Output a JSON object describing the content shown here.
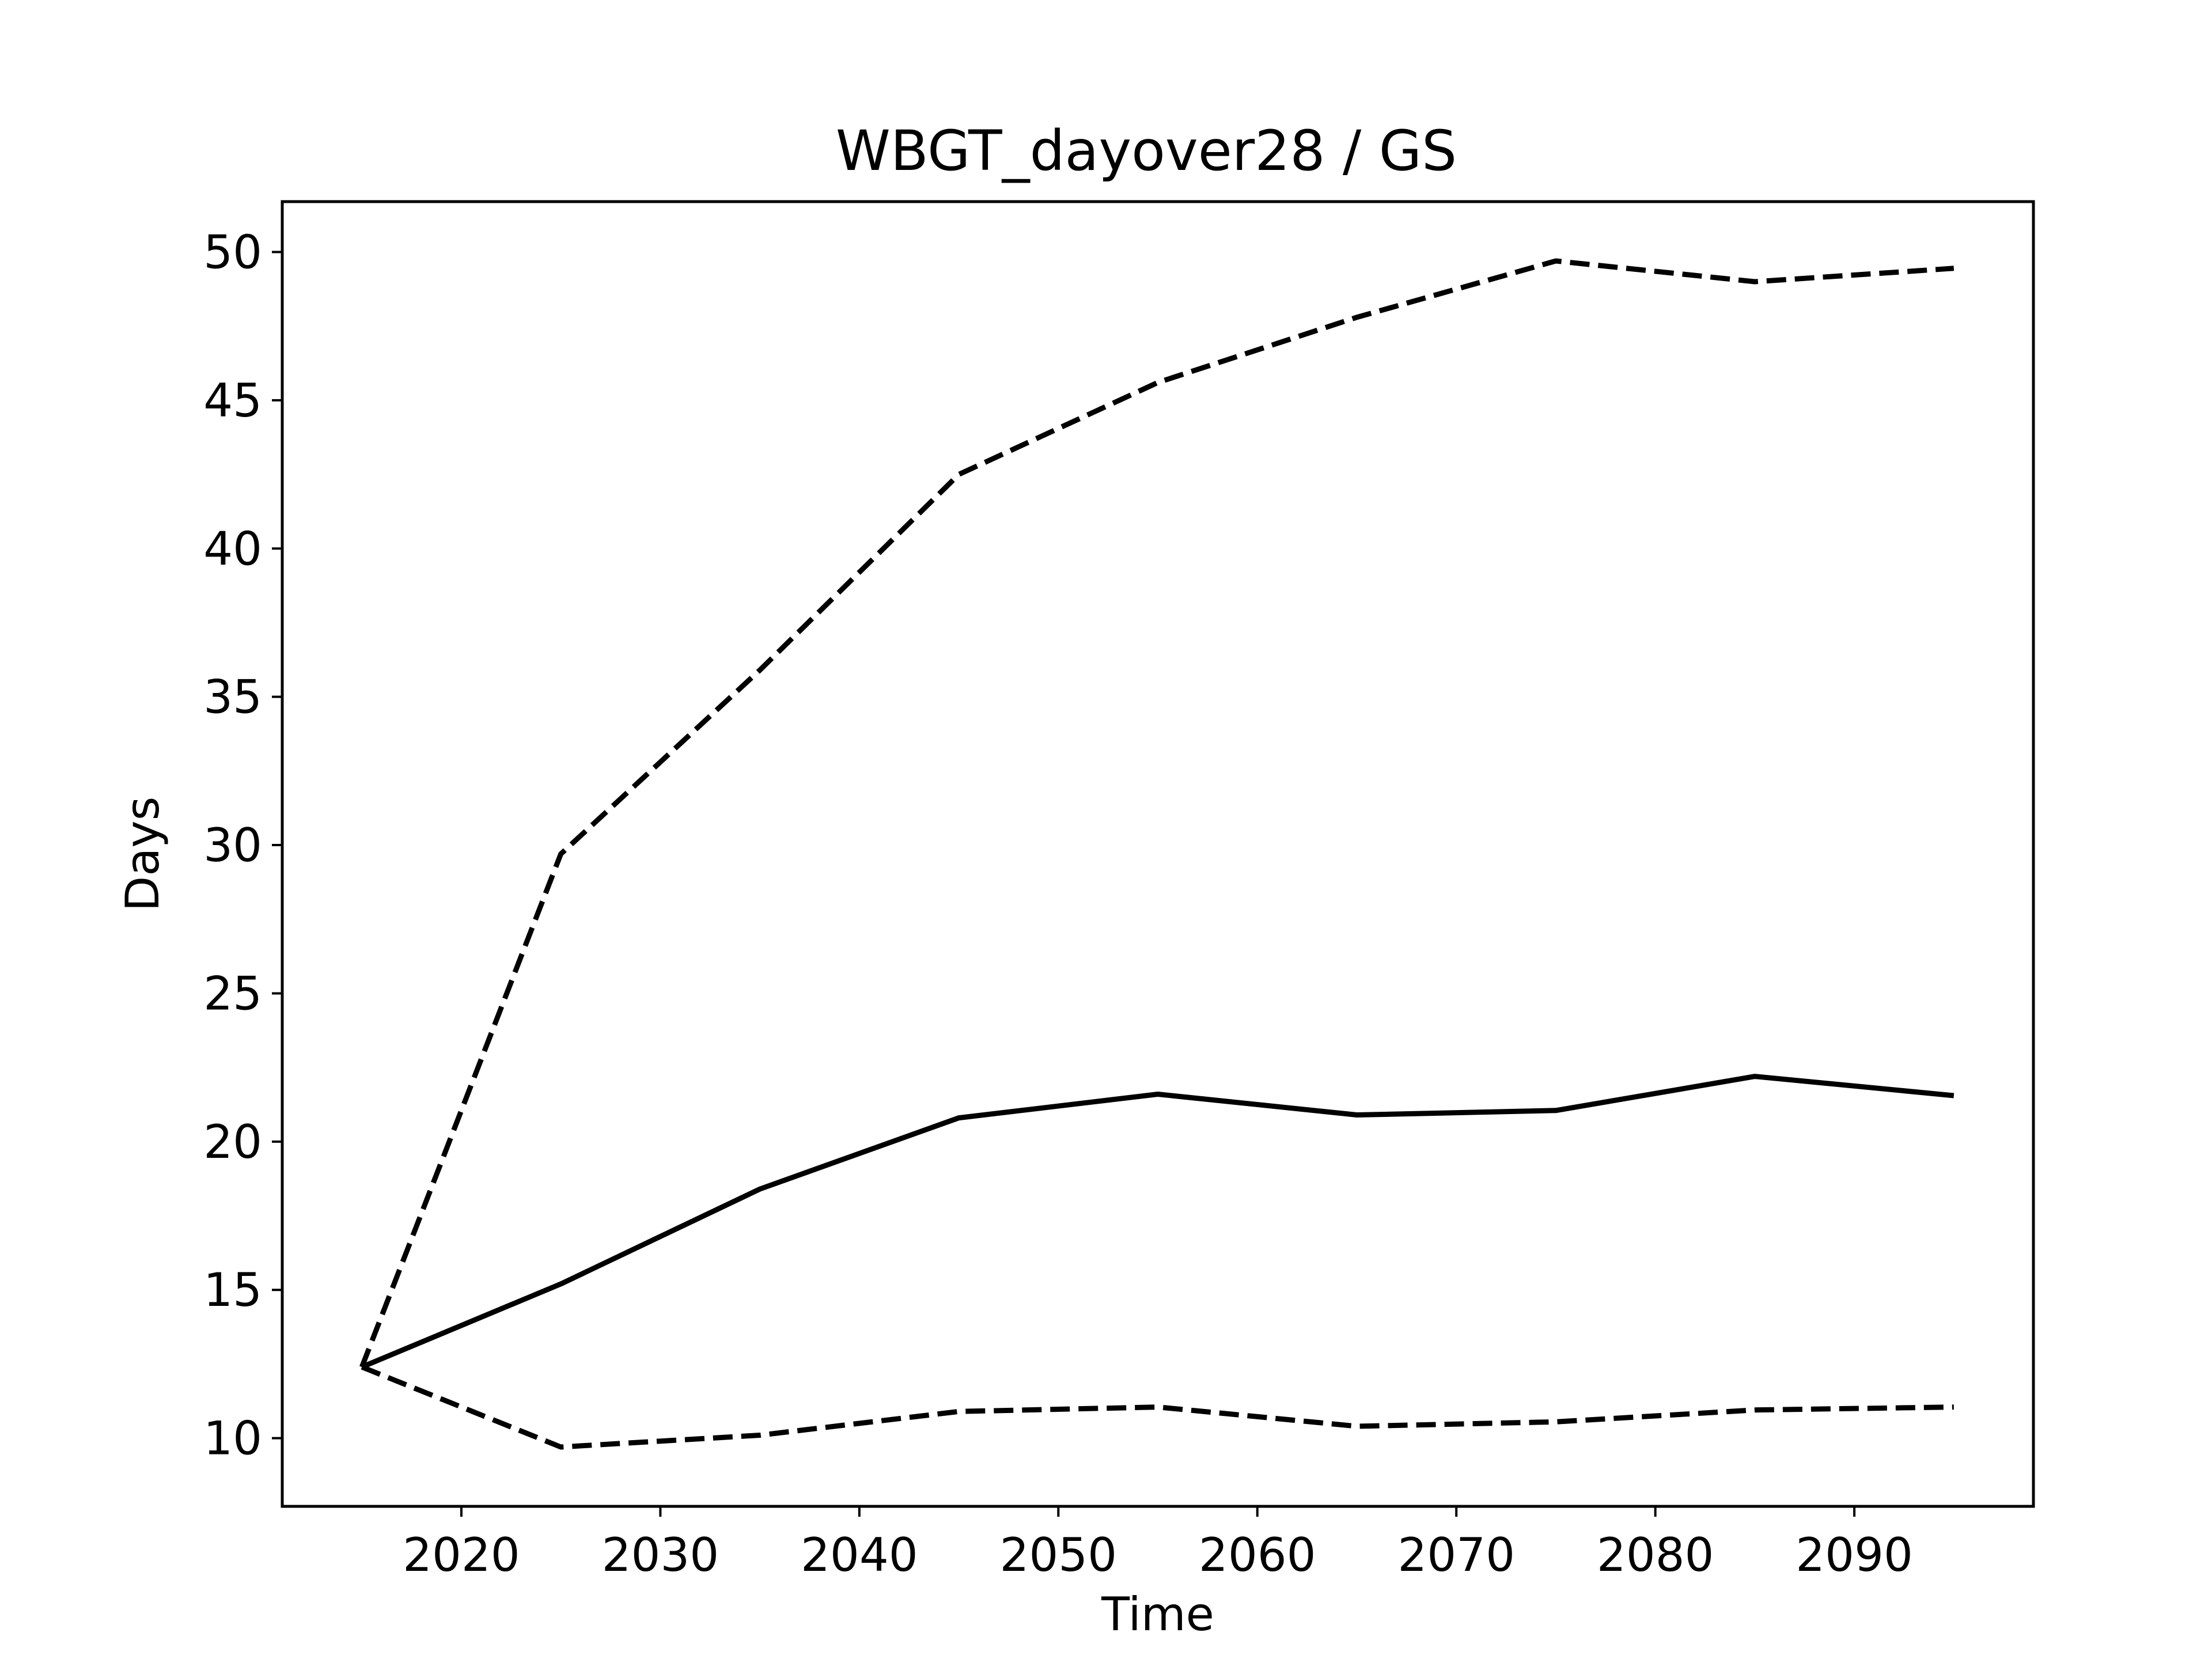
{
  "chart_data": {
    "type": "line",
    "title": "WBGT_dayover28 / GS",
    "xlabel": "Time",
    "ylabel": "Days",
    "x": [
      2015,
      2025,
      2035,
      2045,
      2055,
      2065,
      2075,
      2085,
      2095
    ],
    "xlim": [
      2011,
      2099
    ],
    "ylim": [
      7.7,
      51.7
    ],
    "xticks": [
      2020,
      2030,
      2040,
      2050,
      2060,
      2070,
      2080,
      2090
    ],
    "yticks": [
      10,
      15,
      20,
      25,
      30,
      35,
      40,
      45,
      50
    ],
    "grid": false,
    "legend": "none",
    "series": [
      {
        "style": "solid",
        "color": "#000000",
        "values": [
          12.4,
          15.2,
          18.4,
          20.8,
          21.6,
          20.9,
          21.05,
          22.2,
          21.55
        ]
      },
      {
        "style": "dashed",
        "color": "#000000",
        "values": [
          12.4,
          29.7,
          35.9,
          42.5,
          45.6,
          47.8,
          49.7,
          49.0,
          49.45
        ]
      },
      {
        "style": "dashed",
        "color": "#000000",
        "values": [
          12.4,
          9.7,
          10.1,
          10.9,
          11.05,
          10.4,
          10.55,
          10.95,
          11.05
        ]
      }
    ]
  }
}
